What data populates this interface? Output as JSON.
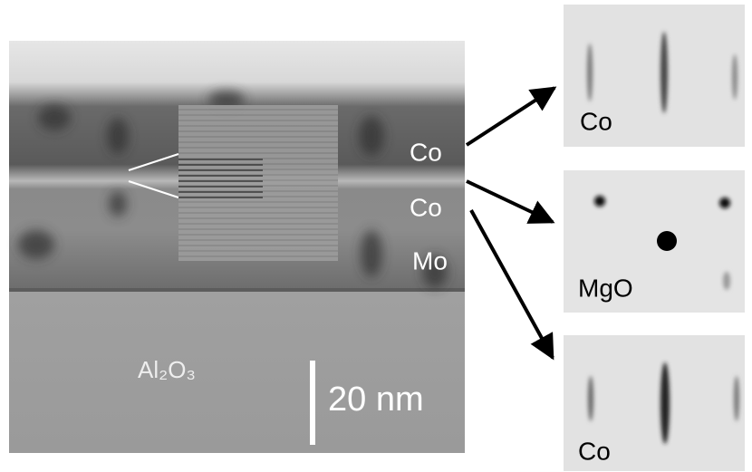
{
  "image": {
    "layer_labels": [
      "Co",
      "Co",
      "Mo"
    ],
    "substrate_label": "Al₂O₃",
    "scale_bar": "20 nm"
  },
  "diffraction_panels": [
    {
      "label": "Co"
    },
    {
      "label": "MgO"
    },
    {
      "label": "Co"
    }
  ]
}
